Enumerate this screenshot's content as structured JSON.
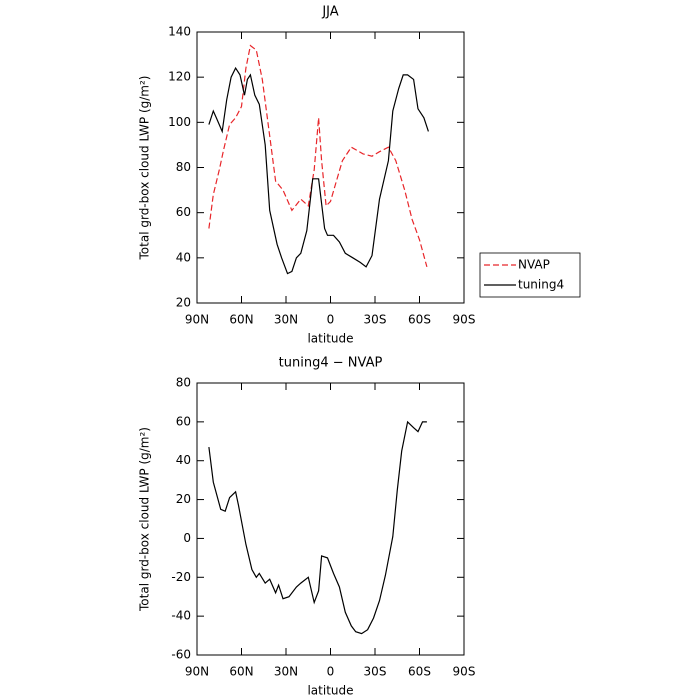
{
  "chart_data": [
    {
      "type": "line",
      "title": "JJA",
      "x_label": "latitude",
      "y_label": "Total grd-box cloud LWP (g/m²)",
      "xlim": [
        90,
        -90
      ],
      "ylim": [
        20,
        140
      ],
      "xticks": [
        {
          "value": 90,
          "label": "90N"
        },
        {
          "value": 60,
          "label": "60N"
        },
        {
          "value": 30,
          "label": "30N"
        },
        0,
        {
          "value": -30,
          "label": "30S"
        },
        {
          "value": -60,
          "label": "60S"
        },
        {
          "value": -90,
          "label": "90S"
        }
      ],
      "yticks": [
        20,
        40,
        60,
        80,
        100,
        120,
        140
      ],
      "legend": "right",
      "series": [
        {
          "name": "NVAP",
          "color": "#e8262a",
          "line_style": "dashed",
          "x": [
            82,
            79,
            75,
            72,
            68,
            64,
            60,
            57,
            54,
            50,
            46,
            41,
            37,
            32,
            26,
            20,
            15,
            11,
            8,
            6,
            3,
            0,
            -4,
            -8,
            -14,
            -22,
            -28,
            -33,
            -39,
            -44,
            -50,
            -55,
            -60,
            -65
          ],
          "values": [
            53,
            68,
            79,
            88,
            99,
            102,
            107,
            124,
            134,
            132,
            119,
            94,
            74,
            70,
            61,
            66,
            63,
            79,
            102,
            83,
            63,
            65,
            74,
            83,
            89,
            86,
            85,
            87,
            89,
            83,
            70,
            57,
            48,
            36
          ]
        },
        {
          "name": "tuning4",
          "color": "#000000",
          "line_style": "solid",
          "x": [
            82,
            79,
            77,
            73,
            70,
            67,
            64,
            61,
            58,
            56,
            54,
            51,
            48,
            44,
            41,
            36,
            33,
            29,
            26,
            23,
            20,
            16,
            12,
            8,
            4,
            2,
            -2,
            -6,
            -10,
            -15,
            -20,
            -24,
            -28,
            -33,
            -39,
            -42,
            -46,
            -49,
            -52,
            -56,
            -59,
            -63,
            -66
          ],
          "values": [
            99,
            105,
            102,
            96,
            110,
            120,
            124,
            121,
            112,
            119,
            121,
            112,
            108,
            90,
            61,
            46,
            40,
            33,
            34,
            40,
            42,
            52,
            75,
            75,
            53,
            50,
            50,
            47,
            42,
            40,
            38,
            36,
            41,
            66,
            83,
            105,
            115,
            121,
            121,
            119,
            106,
            102,
            96
          ]
        }
      ]
    },
    {
      "type": "line",
      "title": "tuning4 − NVAP",
      "x_label": "latitude",
      "y_label": "Total grd-box cloud LWP (g/m²)",
      "xlim": [
        90,
        -90
      ],
      "ylim": [
        -60,
        80
      ],
      "xticks": [
        {
          "value": 90,
          "label": "90N"
        },
        {
          "value": 60,
          "label": "60N"
        },
        {
          "value": 30,
          "label": "30N"
        },
        0,
        {
          "value": -30,
          "label": "30S"
        },
        {
          "value": -60,
          "label": "60S"
        },
        {
          "value": -90,
          "label": "90S"
        }
      ],
      "yticks": [
        -60,
        -40,
        -20,
        0,
        20,
        40,
        60,
        80
      ],
      "series": [
        {
          "color": "#000000",
          "line_style": "solid",
          "x": [
            82,
            79,
            74,
            71,
            68,
            64,
            62,
            57,
            53,
            50,
            48,
            44,
            41,
            37,
            35,
            32,
            28,
            23,
            20,
            15,
            11,
            8,
            6,
            2,
            -2,
            -6,
            -10,
            -14,
            -17,
            -21,
            -25,
            -29,
            -33,
            -37,
            -42,
            -45,
            -48,
            -52,
            -56,
            -59,
            -62,
            -65
          ],
          "values": [
            47,
            29,
            15,
            14,
            21,
            24,
            17,
            -3,
            -16,
            -20,
            -18,
            -23,
            -21,
            -28,
            -24,
            -31,
            -30,
            -25,
            -23,
            -20,
            -33,
            -27,
            -9,
            -10,
            -18,
            -25,
            -38,
            -45,
            -48,
            -49,
            -47,
            -41,
            -32,
            -19,
            1,
            25,
            45,
            60,
            57,
            55,
            60,
            60
          ]
        }
      ]
    }
  ]
}
